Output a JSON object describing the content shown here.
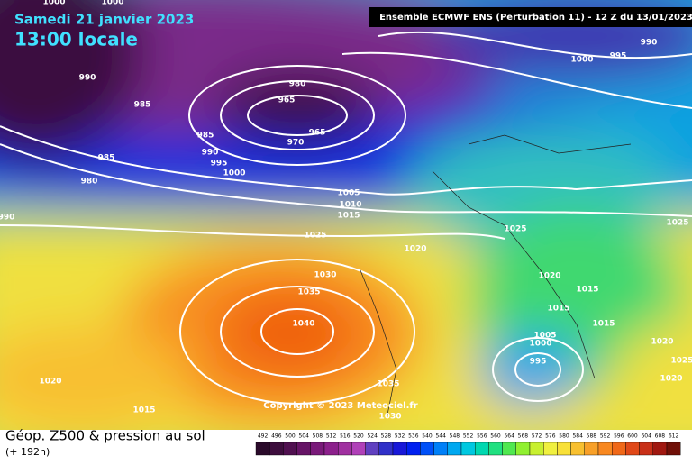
{
  "header": {
    "date": "Samedi 21 janvier 2023",
    "time": "13:00 locale",
    "run": "Ensemble ECMWF ENS  (Perturbation 11)  -  12 Z du 13/01/2023"
  },
  "copyright": "Copyright © 2023 Meteociel.fr",
  "footer": {
    "title": "Géop. Z500 & pression au sol",
    "lead": "(+ 192h)"
  },
  "isobar_labels": [
    1000,
    1000,
    990,
    985,
    980,
    965,
    965,
    970,
    985,
    990,
    995,
    1000,
    985,
    980,
    990,
    1005,
    1010,
    1015,
    1025,
    1020,
    1025,
    1025,
    1030,
    1035,
    1040,
    1020,
    1015,
    1015,
    1005,
    1000,
    995,
    1015,
    1020,
    1025,
    1020,
    1030,
    1035,
    1015,
    1020,
    990,
    995,
    1000
  ],
  "scale": {
    "values": [
      492,
      496,
      500,
      504,
      508,
      512,
      516,
      520,
      524,
      528,
      532,
      536,
      540,
      544,
      548,
      552,
      556,
      560,
      564,
      568,
      572,
      576,
      580,
      584,
      588,
      592,
      596,
      600,
      604,
      608,
      612
    ],
    "colors": [
      "#2a0a2a",
      "#3d0d3d",
      "#501050",
      "#661466",
      "#7a1a7a",
      "#8c208c",
      "#a030a0",
      "#b040b8",
      "#6040c0",
      "#3030c8",
      "#1818d8",
      "#0020f0",
      "#0050f8",
      "#0080f8",
      "#00a8f0",
      "#00c8e0",
      "#00d8b0",
      "#20e080",
      "#50e850",
      "#90f030",
      "#c8f030",
      "#f0f040",
      "#f8e038",
      "#f8c030",
      "#f8a028",
      "#f88820",
      "#f06818",
      "#e04818",
      "#c83018",
      "#a01810",
      "#701008"
    ]
  }
}
